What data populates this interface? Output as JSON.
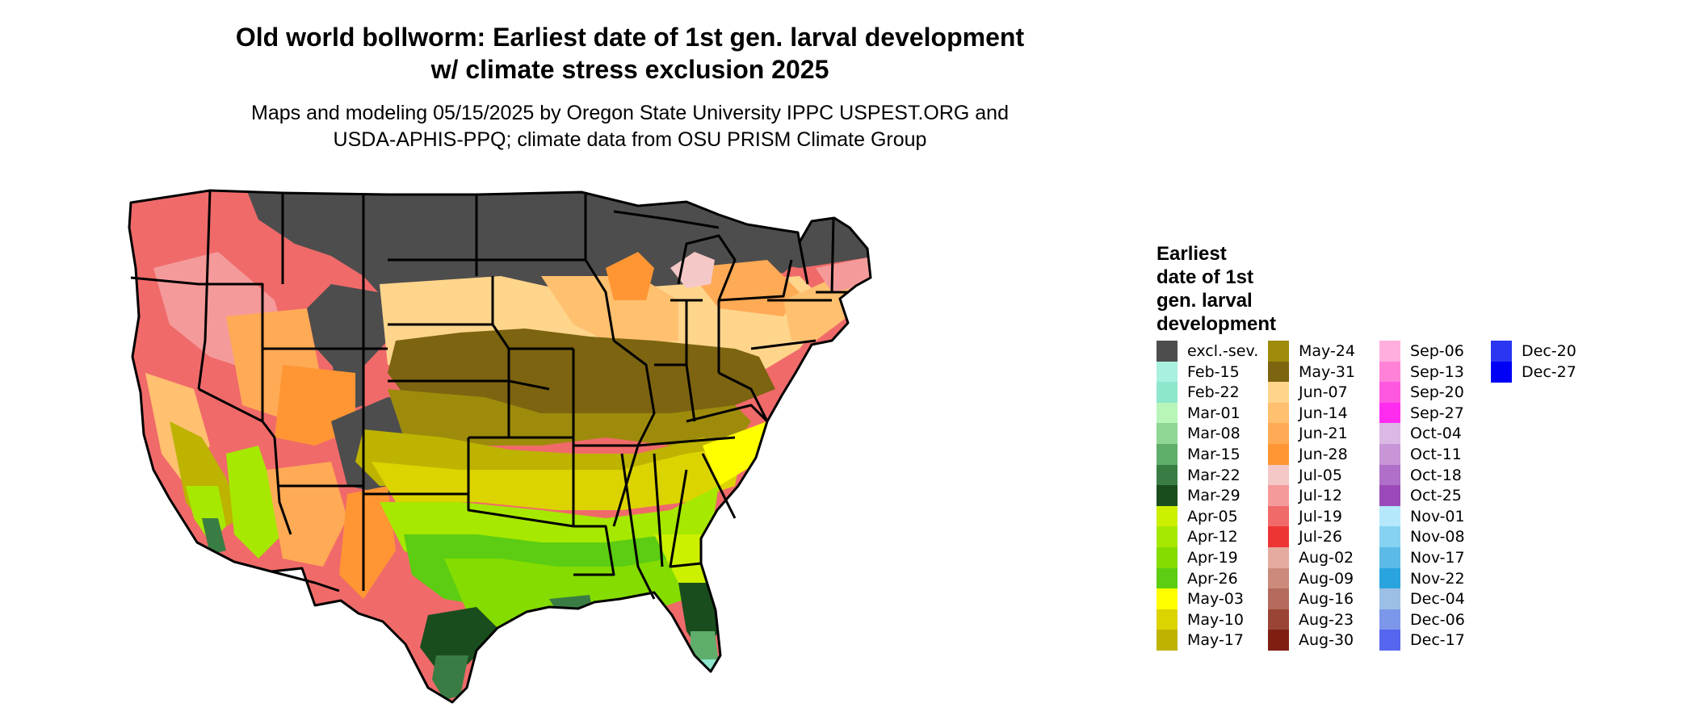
{
  "title_line1": "Old world bollworm: Earliest date of 1st gen. larval development",
  "title_line2": "w/ climate stress exclusion 2025",
  "subtitle_line1": "Maps and modeling 05/15/2025 by Oregon State University IPPC USPEST.ORG and",
  "subtitle_line2": "USDA-APHIS-PPQ; climate data from OSU PRISM Climate Group",
  "legend": {
    "title_lines": [
      "Earliest",
      "date of 1st",
      "gen. larval",
      "development"
    ],
    "items": [
      {
        "label": "excl.-sev.",
        "color": "#4d4d4d"
      },
      {
        "label": "Feb-15",
        "color": "#a8f0e0"
      },
      {
        "label": "Feb-22",
        "color": "#8ee6cc"
      },
      {
        "label": "Mar-01",
        "color": "#b8f5b8"
      },
      {
        "label": "Mar-08",
        "color": "#8fd694"
      },
      {
        "label": "Mar-15",
        "color": "#5fae6c"
      },
      {
        "label": "Mar-22",
        "color": "#3a7d44"
      },
      {
        "label": "Mar-29",
        "color": "#1a4d1e"
      },
      {
        "label": "Apr-05",
        "color": "#ccf000"
      },
      {
        "label": "Apr-12",
        "color": "#a6e800"
      },
      {
        "label": "Apr-19",
        "color": "#84dc00"
      },
      {
        "label": "Apr-26",
        "color": "#5ccd12"
      },
      {
        "label": "May-03",
        "color": "#ffff00"
      },
      {
        "label": "May-10",
        "color": "#dcd400"
      },
      {
        "label": "May-17",
        "color": "#bdb300"
      },
      {
        "label": "May-24",
        "color": "#9e8b0c"
      },
      {
        "label": "May-31",
        "color": "#7c6410"
      },
      {
        "label": "Jun-07",
        "color": "#ffd58c"
      },
      {
        "label": "Jun-14",
        "color": "#ffc070"
      },
      {
        "label": "Jun-21",
        "color": "#ffaa55"
      },
      {
        "label": "Jun-28",
        "color": "#ff9633"
      },
      {
        "label": "Jul-05",
        "color": "#f5c8c8"
      },
      {
        "label": "Jul-12",
        "color": "#f59a9a"
      },
      {
        "label": "Jul-19",
        "color": "#f06a6a"
      },
      {
        "label": "Jul-26",
        "color": "#ee3535"
      },
      {
        "label": "Aug-02",
        "color": "#e6aba0"
      },
      {
        "label": "Aug-09",
        "color": "#cc8a7c"
      },
      {
        "label": "Aug-16",
        "color": "#b46a5c"
      },
      {
        "label": "Aug-23",
        "color": "#9a4436"
      },
      {
        "label": "Aug-30",
        "color": "#7e1f12"
      },
      {
        "label": "Sep-06",
        "color": "#ffaede"
      },
      {
        "label": "Sep-13",
        "color": "#ff82d8"
      },
      {
        "label": "Sep-20",
        "color": "#ff58e0"
      },
      {
        "label": "Sep-27",
        "color": "#ff2cf0"
      },
      {
        "label": "Oct-04",
        "color": "#dcb9e4"
      },
      {
        "label": "Oct-11",
        "color": "#c895d6"
      },
      {
        "label": "Oct-18",
        "color": "#b06fc8"
      },
      {
        "label": "Oct-25",
        "color": "#9a4ab8"
      },
      {
        "label": "Nov-01",
        "color": "#b4e8fa"
      },
      {
        "label": "Nov-08",
        "color": "#86d2f2"
      },
      {
        "label": "Nov-17",
        "color": "#5cbbe6"
      },
      {
        "label": "Nov-22",
        "color": "#2aa4de"
      },
      {
        "label": "Dec-04",
        "color": "#9cbfe6"
      },
      {
        "label": "Dec-06",
        "color": "#7c96ea"
      },
      {
        "label": "Dec-17",
        "color": "#5666ee"
      },
      {
        "label": "Dec-20",
        "color": "#2a36f2"
      },
      {
        "label": "Dec-27",
        "color": "#0000f6"
      }
    ]
  }
}
